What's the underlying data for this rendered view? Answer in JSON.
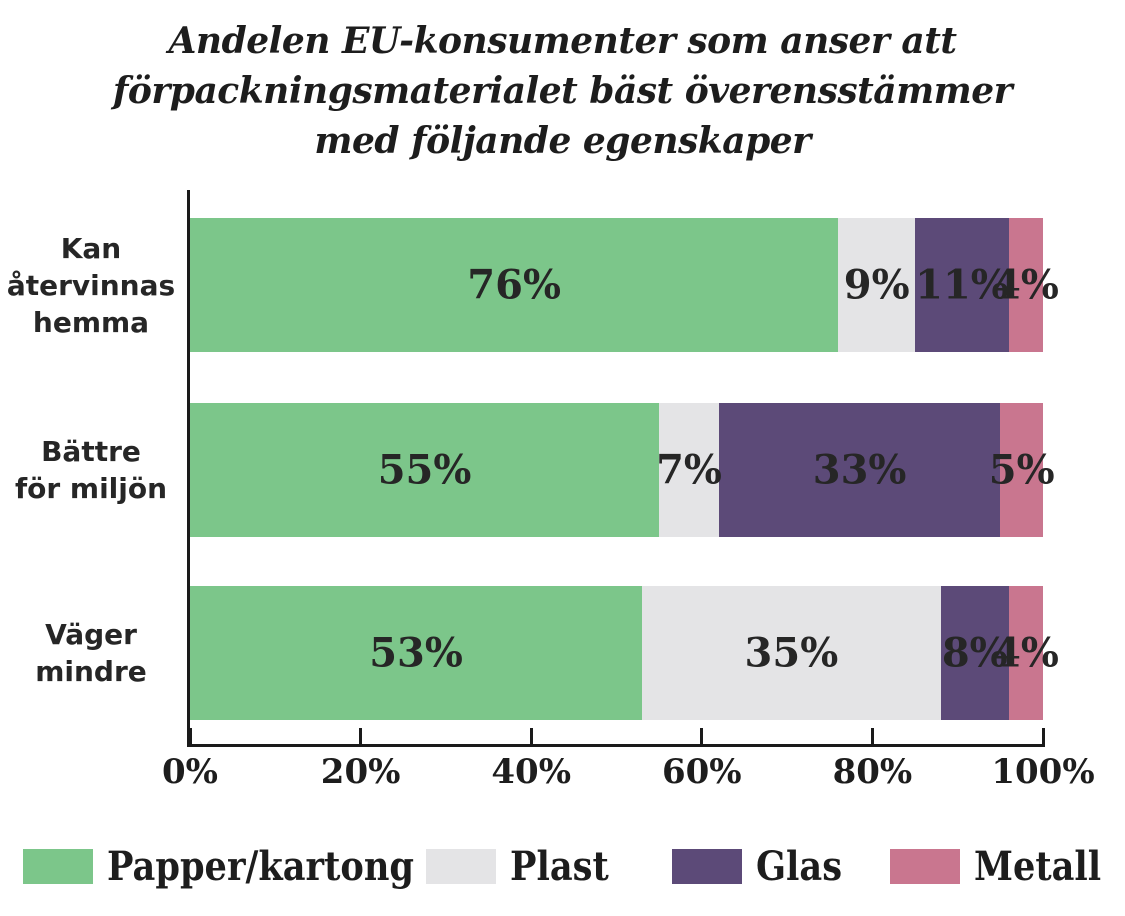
{
  "title": {
    "lines": [
      "Andelen EU-konsumenter som anser att",
      "förpackningsmaterialet bäst överensstämmer",
      "med följande egenskaper"
    ]
  },
  "colors": {
    "background": "#ffffff",
    "axis": "#1a1a1a",
    "text": "#262626",
    "title_text": "#1d1d1d"
  },
  "chart_data": {
    "type": "bar",
    "orientation": "horizontal",
    "stacked": true,
    "value_unit": "%",
    "categories": [
      "Kan återvinnas hemma",
      "Bättre för miljön",
      "Väger mindre"
    ],
    "category_label_lines": [
      [
        "Kan",
        "återvinnas",
        "hemma"
      ],
      [
        "Bättre",
        "för miljön"
      ],
      [
        "Väger",
        "mindre"
      ]
    ],
    "series": [
      {
        "name": "Papper/kartong",
        "color": "#7cc68a",
        "values": [
          76,
          55,
          53
        ]
      },
      {
        "name": "Plast",
        "color": "#e4e4e6",
        "values": [
          9,
          7,
          35
        ]
      },
      {
        "name": "Glas",
        "color": "#5c4a78",
        "values": [
          11,
          33,
          8
        ]
      },
      {
        "name": "Metall",
        "color": "#c9768f",
        "values": [
          4,
          5,
          4
        ]
      }
    ],
    "value_labels": [
      "76%",
      "9%",
      "11%",
      "4%",
      "55%",
      "7%",
      "33%",
      "5%",
      "53%",
      "35%",
      "8%",
      "4%"
    ],
    "x_ticks": [
      "0%",
      "20%",
      "40%",
      "60%",
      "80%",
      "100%"
    ],
    "xlim": [
      0,
      100
    ],
    "grid": false,
    "legend_position": "bottom"
  },
  "legend": {
    "items": [
      {
        "label": "Papper/kartong",
        "color": "#7cc68a"
      },
      {
        "label": "Plast",
        "color": "#e4e4e6"
      },
      {
        "label": "Glas",
        "color": "#5c4a78"
      },
      {
        "label": "Metall",
        "color": "#c9768f"
      }
    ]
  }
}
